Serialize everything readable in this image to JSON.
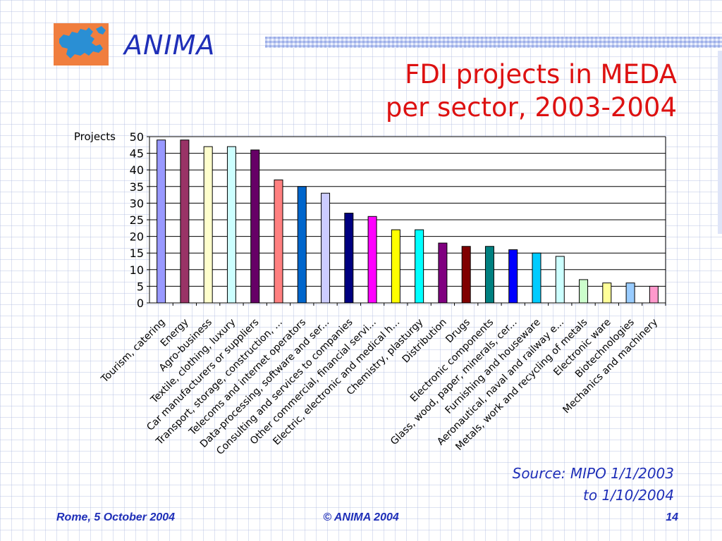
{
  "header": {
    "brand": "ANIMA",
    "title_line1": "FDI projects in MEDA",
    "title_line2": "per sector, 2003-2004"
  },
  "source": {
    "line1": "Source: MIPO 1/1/2003",
    "line2": "to 1/10/2004"
  },
  "footer": {
    "left": "Rome, 5 October 2004",
    "center": "©  ANIMA 2004",
    "right": "14"
  },
  "colors": {
    "title": "#dd1111",
    "brand": "#1f2fb8",
    "logo_bg": "#f07e3e",
    "logo_map": "#2a8fd4"
  },
  "chart_data": {
    "type": "bar",
    "ylabel": "Projects",
    "xlabel": "",
    "ylim": [
      0,
      50
    ],
    "yticks": [
      0,
      5,
      10,
      15,
      20,
      25,
      30,
      35,
      40,
      45,
      50
    ],
    "grid": true,
    "categories": [
      "Tourism, catering",
      "Energy",
      "Agro-business",
      "Textile, clothing, luxury",
      "Car manufacturers or suppliers",
      "Transport, storage, construction, ...",
      "Telecoms and internet operators",
      "Data-processing, software and ser...",
      "Consulting and services to companies",
      "Other commercial, financial servi...",
      "Electric, electronic and medical h...",
      "Chemistry, plasturgy",
      "Distribution",
      "Drugs",
      "Electronic components",
      "Glass, wood, paper, minerals, cer...",
      "Furnishing and houseware",
      "Aeronautical, naval and railway e...",
      "Metals, work and recycling of metals",
      "Electronic ware",
      "Biotechnologies",
      "Mechanics and machinery"
    ],
    "values": [
      49,
      49,
      47,
      47,
      46,
      37,
      35,
      33,
      27,
      26,
      22,
      22,
      18,
      17,
      17,
      16,
      15,
      14,
      7,
      6,
      6,
      5
    ],
    "bar_colors": [
      "#9999ff",
      "#993366",
      "#ffffcc",
      "#ccffff",
      "#660066",
      "#ff8080",
      "#0066cc",
      "#ccccff",
      "#000080",
      "#ff00ff",
      "#ffff00",
      "#00ffff",
      "#800080",
      "#800000",
      "#008080",
      "#0000ff",
      "#00ccff",
      "#ccffff",
      "#ccffcc",
      "#ffff99",
      "#99ccff",
      "#ff99cc"
    ]
  }
}
